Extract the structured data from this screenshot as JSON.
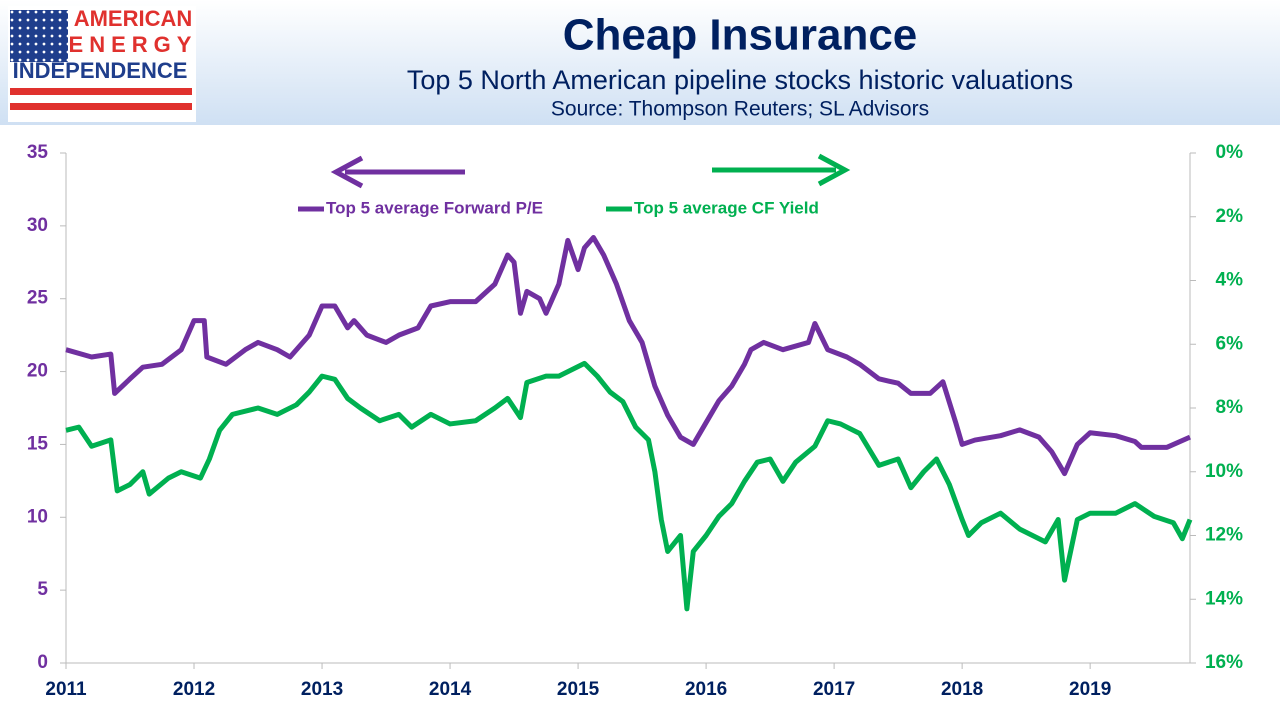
{
  "logo": {
    "lines": [
      "AMERICAN",
      "ENERGY",
      "INDEPENDENCE"
    ]
  },
  "chart_data": {
    "type": "line",
    "title": "Cheap Insurance",
    "subtitle": "Top 5 North American pipeline stocks historic valuations",
    "source": "Source: Thompson Reuters; SL Advisors",
    "legend": "top",
    "xlim": [
      2011,
      2019.78
    ],
    "xticks": [
      2011,
      2012,
      2013,
      2014,
      2015,
      2016,
      2017,
      2018,
      2019
    ],
    "ylim": [
      0,
      35
    ],
    "yticks": [
      0,
      5,
      10,
      15,
      20,
      25,
      30,
      35
    ],
    "y2lim": [
      16,
      0
    ],
    "y2ticks": [
      {
        "value": 0,
        "label": "0%"
      },
      {
        "value": 2,
        "label": "2%"
      },
      {
        "value": 4,
        "label": "4%"
      },
      {
        "value": 6,
        "label": "6%"
      },
      {
        "value": 8,
        "label": "8%"
      },
      {
        "value": 10,
        "label": "10%"
      },
      {
        "value": 12,
        "label": "12%"
      },
      {
        "value": 14,
        "label": "14%"
      },
      {
        "value": 16,
        "label": "16%"
      }
    ],
    "ycolor": "#7030a0",
    "y2color": "#00b050",
    "series": [
      {
        "name": "Top 5 average Forward P/E",
        "color": "#7030a0",
        "axis": "y",
        "x": [
          2011.0,
          2011.2,
          2011.35,
          2011.38,
          2011.5,
          2011.6,
          2011.75,
          2011.9,
          2012.0,
          2012.08,
          2012.1,
          2012.25,
          2012.4,
          2012.5,
          2012.65,
          2012.75,
          2012.9,
          2013.0,
          2013.1,
          2013.2,
          2013.25,
          2013.35,
          2013.5,
          2013.6,
          2013.75,
          2013.85,
          2014.0,
          2014.2,
          2014.35,
          2014.45,
          2014.5,
          2014.55,
          2014.6,
          2014.7,
          2014.75,
          2014.85,
          2014.92,
          2015.0,
          2015.05,
          2015.12,
          2015.2,
          2015.3,
          2015.4,
          2015.5,
          2015.6,
          2015.7,
          2015.8,
          2015.9,
          2016.0,
          2016.1,
          2016.2,
          2016.3,
          2016.35,
          2016.45,
          2016.6,
          2016.8,
          2016.85,
          2016.95,
          2017.1,
          2017.2,
          2017.35,
          2017.5,
          2017.6,
          2017.75,
          2017.85,
          2017.95,
          2018.0,
          2018.1,
          2018.3,
          2018.45,
          2018.6,
          2018.7,
          2018.8,
          2018.9,
          2019.0,
          2019.2,
          2019.35,
          2019.4,
          2019.6,
          2019.78
        ],
        "values": [
          21.5,
          21,
          21.2,
          18.5,
          19.5,
          20.3,
          20.5,
          21.5,
          23.5,
          23.5,
          21,
          20.5,
          21.5,
          22,
          21.5,
          21,
          22.5,
          24.5,
          24.5,
          23,
          23.5,
          22.5,
          22,
          22.5,
          23,
          24.5,
          24.8,
          24.8,
          26,
          28,
          27.5,
          24,
          25.5,
          25,
          24,
          26,
          29,
          27,
          28.5,
          29.2,
          28,
          26,
          23.5,
          22,
          19,
          17,
          15.5,
          15,
          16.5,
          18,
          19,
          20.5,
          21.5,
          22,
          21.5,
          22,
          23.3,
          21.5,
          21,
          20.5,
          19.5,
          19.2,
          18.5,
          18.5,
          19.3,
          16.5,
          15,
          15.3,
          15.6,
          16,
          15.5,
          14.5,
          13,
          15,
          15.8,
          15.6,
          15.2,
          14.8,
          14.8,
          15.5
        ]
      },
      {
        "name": "Top 5 average CF Yield",
        "color": "#00b050",
        "axis": "y2",
        "x": [
          2011.0,
          2011.1,
          2011.2,
          2011.35,
          2011.4,
          2011.5,
          2011.6,
          2011.65,
          2011.8,
          2011.9,
          2012.05,
          2012.12,
          2012.2,
          2012.3,
          2012.5,
          2012.65,
          2012.8,
          2012.9,
          2013.0,
          2013.1,
          2013.2,
          2013.3,
          2013.45,
          2013.6,
          2013.7,
          2013.85,
          2014.0,
          2014.2,
          2014.35,
          2014.45,
          2014.55,
          2014.6,
          2014.75,
          2014.85,
          2015.05,
          2015.15,
          2015.25,
          2015.35,
          2015.45,
          2015.55,
          2015.6,
          2015.65,
          2015.7,
          2015.8,
          2015.85,
          2015.9,
          2016.0,
          2016.1,
          2016.2,
          2016.3,
          2016.4,
          2016.5,
          2016.6,
          2016.7,
          2016.85,
          2016.95,
          2017.05,
          2017.2,
          2017.35,
          2017.5,
          2017.6,
          2017.7,
          2017.8,
          2017.9,
          2018.0,
          2018.05,
          2018.15,
          2018.3,
          2018.45,
          2018.55,
          2018.65,
          2018.75,
          2018.8,
          2018.9,
          2019.0,
          2019.2,
          2019.35,
          2019.5,
          2019.65,
          2019.72,
          2019.78
        ],
        "values": [
          8.7,
          8.6,
          9.2,
          9.0,
          10.6,
          10.4,
          10.0,
          10.7,
          10.2,
          10,
          10.2,
          9.6,
          8.7,
          8.2,
          8.0,
          8.2,
          7.9,
          7.5,
          7.0,
          7.1,
          7.7,
          8.0,
          8.4,
          8.2,
          8.6,
          8.2,
          8.5,
          8.4,
          8.0,
          7.7,
          8.3,
          7.2,
          7.0,
          7.0,
          6.6,
          7.0,
          7.5,
          7.8,
          8.6,
          9.0,
          10.0,
          11.5,
          12.5,
          12.0,
          14.3,
          12.5,
          12.0,
          11.4,
          11.0,
          10.3,
          9.7,
          9.6,
          10.3,
          9.7,
          9.2,
          8.4,
          8.5,
          8.8,
          9.8,
          9.6,
          10.5,
          10.0,
          9.6,
          10.4,
          11.5,
          12.0,
          11.6,
          11.3,
          11.8,
          12.0,
          12.2,
          11.5,
          13.4,
          11.5,
          11.3,
          11.3,
          11.0,
          11.4,
          11.6,
          12.1,
          11.5
        ]
      }
    ]
  }
}
